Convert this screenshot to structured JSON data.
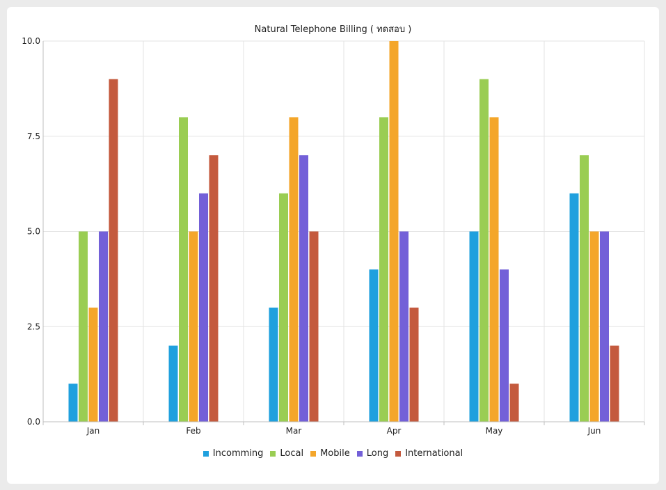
{
  "chart_data": {
    "type": "bar",
    "title": "Natural Telephone Billing ( ทดสอบ )",
    "categories": [
      "Jan",
      "Feb",
      "Mar",
      "Apr",
      "May",
      "Jun"
    ],
    "series": [
      {
        "name": "Incomming",
        "color": "#1fa0de",
        "values": [
          1,
          2,
          3,
          4,
          5,
          6
        ]
      },
      {
        "name": "Local",
        "color": "#9acd53",
        "values": [
          5,
          8,
          6,
          8,
          9,
          7
        ]
      },
      {
        "name": "Mobile",
        "color": "#f4a62a",
        "values": [
          3,
          5,
          8,
          10,
          8,
          5
        ]
      },
      {
        "name": "Long",
        "color": "#7360d8",
        "values": [
          5,
          6,
          7,
          5,
          4,
          5
        ]
      },
      {
        "name": "International",
        "color": "#c45a3e",
        "values": [
          9,
          7,
          5,
          3,
          1,
          2
        ]
      }
    ],
    "ylim": [
      0,
      10
    ],
    "yticks": [
      "0.0",
      "2.5",
      "5.0",
      "7.5",
      "10.0"
    ],
    "grid": true,
    "legend": "bottom"
  }
}
